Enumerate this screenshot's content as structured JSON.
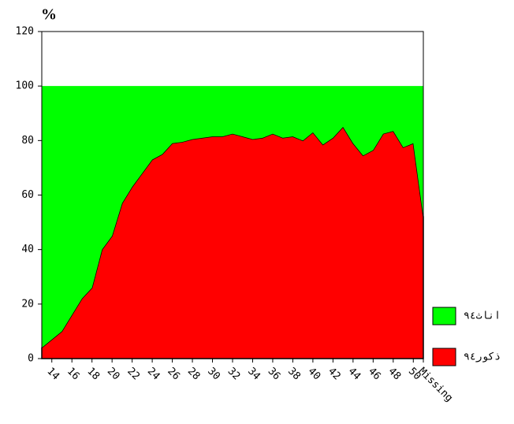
{
  "chart_data": {
    "type": "stacked_area",
    "title": "%",
    "categories": [
      null,
      "14",
      null,
      "16",
      null,
      "18",
      null,
      "20",
      null,
      "22",
      null,
      "24",
      null,
      "26",
      null,
      "28",
      null,
      "30",
      null,
      "32",
      null,
      "34",
      null,
      "36",
      null,
      "38",
      null,
      "40",
      null,
      "42",
      null,
      "44",
      null,
      "46",
      null,
      "48",
      null,
      "50",
      "Missing"
    ],
    "series": [
      {
        "name": "ذكور٩٤",
        "color": "#ff0000",
        "values": [
          4,
          7,
          10,
          16,
          22,
          26,
          40,
          45,
          57,
          63,
          68,
          73,
          75,
          79,
          79.5,
          80.5,
          81,
          81.5,
          81.5,
          82.5,
          81.5,
          80.5,
          81,
          82.5,
          81,
          81.5,
          80,
          83,
          78.5,
          81,
          85,
          79,
          74.5,
          76.5,
          82.5,
          83.5,
          77.5,
          79,
          52
        ]
      },
      {
        "name": "اناث٩٤",
        "color": "#00ff00",
        "values": [
          96,
          93,
          90,
          84,
          78,
          74,
          60,
          55,
          43,
          37,
          32,
          27,
          25,
          21,
          20.5,
          19.5,
          19,
          18.5,
          18.5,
          17.5,
          18.5,
          19.5,
          19,
          17.5,
          19,
          18.5,
          20,
          17,
          21.5,
          19,
          15,
          21,
          25.5,
          23.5,
          17.5,
          16.5,
          22.5,
          21,
          48
        ]
      }
    ],
    "ylim": [
      0,
      120
    ],
    "yticks": [
      0,
      20,
      40,
      60,
      80,
      100,
      120
    ]
  }
}
